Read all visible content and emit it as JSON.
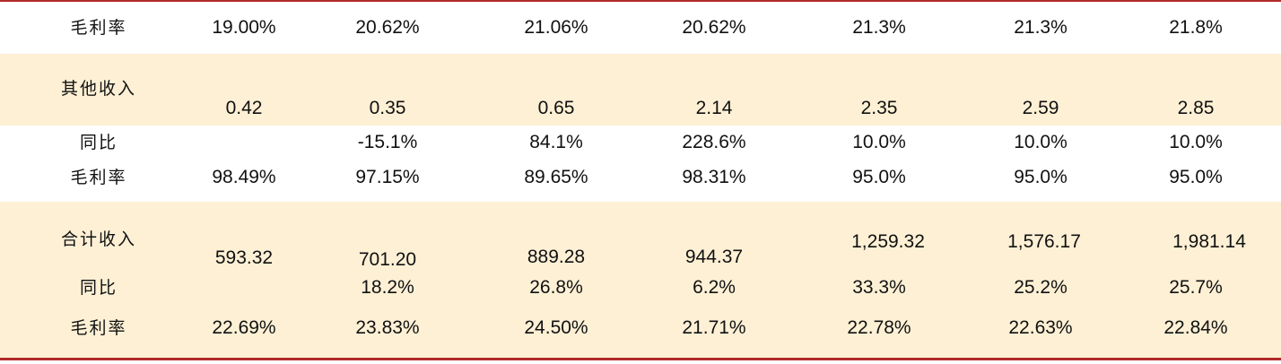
{
  "rows": [
    {
      "label": "毛利率",
      "values": [
        "19.00%",
        "20.62%",
        "21.06%",
        "20.62%",
        "21.3%",
        "21.3%",
        "21.8%"
      ]
    },
    {
      "label": "其他收入",
      "values": [
        "0.42",
        "0.35",
        "0.65",
        "2.14",
        "2.35",
        "2.59",
        "2.85"
      ]
    },
    {
      "label": "同比",
      "values": [
        "",
        "-15.1%",
        "84.1%",
        "228.6%",
        "10.0%",
        "10.0%",
        "10.0%"
      ]
    },
    {
      "label": "毛利率",
      "values": [
        "98.49%",
        "97.15%",
        "89.65%",
        "98.31%",
        "95.0%",
        "95.0%",
        "95.0%"
      ]
    },
    {
      "label": "合计收入",
      "values": [
        "593.32",
        "701.20",
        "889.28",
        "944.37",
        "1,259.32",
        "1,576.17",
        "1,981.14"
      ]
    },
    {
      "label": "同比",
      "values": [
        "",
        "18.2%",
        "26.8%",
        "6.2%",
        "33.3%",
        "25.2%",
        "25.7%"
      ]
    },
    {
      "label": "毛利率",
      "values": [
        "22.69%",
        "23.83%",
        "24.50%",
        "21.71%",
        "22.78%",
        "22.63%",
        "22.84%"
      ]
    }
  ],
  "colors": {
    "rule": "#b02a2a",
    "highlight": "#fdf0d5"
  }
}
